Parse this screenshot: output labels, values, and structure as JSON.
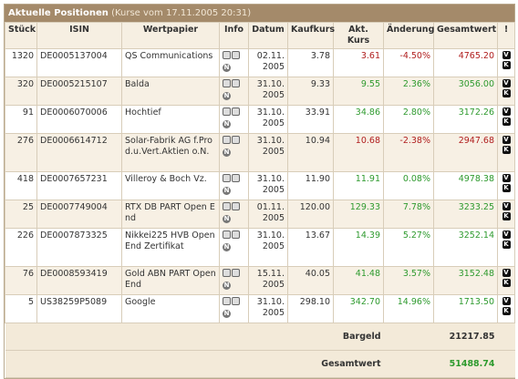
{
  "header": {
    "title": "Aktuelle Positionen",
    "subtitle": "(Kurse vom 17.11.2005 20:31)"
  },
  "table": {
    "columns": [
      "Stück",
      "ISIN",
      "Wertpapier",
      "Info",
      "Datum",
      "Kaufkurs",
      "Akt. Kurs",
      "Änderung",
      "Gesamtwert",
      "!"
    ],
    "info_icon_label": "N",
    "flag_icons": [
      "V",
      "K"
    ],
    "rows": [
      {
        "cells": [
          "1320",
          "DE0005137004",
          "QS Communications",
          "02.11. 2005",
          "3.78",
          "3.61",
          "-4.50%",
          "4765.20"
        ],
        "trend": "down",
        "value_trend": "down"
      },
      {
        "cells": [
          "320",
          "DE0005215107",
          "Balda",
          "31.10. 2005",
          "9.33",
          "9.55",
          "2.36%",
          "3056.00"
        ],
        "trend": "up",
        "value_trend": "up"
      },
      {
        "cells": [
          "91",
          "DE0006070006",
          "Hochtief",
          "31.10. 2005",
          "33.91",
          "34.86",
          "2.80%",
          "3172.26"
        ],
        "trend": "up",
        "value_trend": "up"
      },
      {
        "cells": [
          "276",
          "DE0006614712",
          "Solar-Fabrik AG f.Prod.u.Vert.Aktien o.N.",
          "31.10. 2005",
          "10.94",
          "10.68",
          "-2.38%",
          "2947.68"
        ],
        "trend": "down",
        "value_trend": "down"
      },
      {
        "cells": [
          "418",
          "DE0007657231",
          "Villeroy & Boch Vz.",
          "31.10. 2005",
          "11.90",
          "11.91",
          "0.08%",
          "4978.38"
        ],
        "trend": "up",
        "value_trend": "up"
      },
      {
        "cells": [
          "25",
          "DE0007749004",
          "RTX DB PART Open End",
          "01.11. 2005",
          "120.00",
          "129.33",
          "7.78%",
          "3233.25"
        ],
        "trend": "up",
        "value_trend": "up"
      },
      {
        "cells": [
          "226",
          "DE0007873325",
          "Nikkei225 HVB Open End Zertifikat",
          "31.10. 2005",
          "13.67",
          "14.39",
          "5.27%",
          "3252.14"
        ],
        "trend": "up",
        "value_trend": "up"
      },
      {
        "cells": [
          "76",
          "DE0008593419",
          "Gold ABN PART Open End",
          "15.11. 2005",
          "40.05",
          "41.48",
          "3.57%",
          "3152.48"
        ],
        "trend": "up",
        "value_trend": "up"
      },
      {
        "cells": [
          "5",
          "US38259P5089",
          "Google",
          "31.10. 2005",
          "298.10",
          "342.70",
          "14.96%",
          "1713.50"
        ],
        "trend": "up",
        "value_trend": "up"
      }
    ],
    "totals": [
      {
        "label": "Bargeld",
        "value": "21217.85"
      },
      {
        "label": "Gesamtwert",
        "value": "51488.74"
      }
    ]
  }
}
